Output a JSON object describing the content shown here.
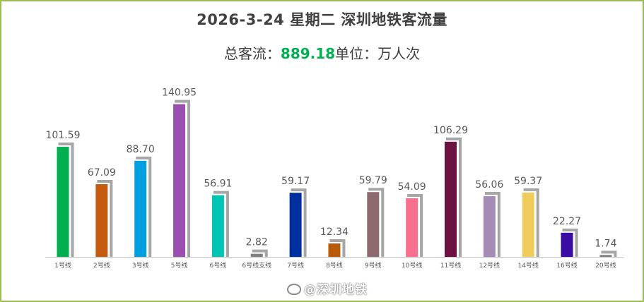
{
  "header": {
    "title": "2026-3-24 星期二  深圳地铁客流量",
    "total_prefix": "总客流：",
    "total_value": "889.18",
    "unit_text": "单位：万人次"
  },
  "watermark": {
    "text": "@深圳地铁",
    "icon": "weibo-icon"
  },
  "colors": {
    "total_value": "#00b050",
    "frame_border": "#9bbb59",
    "bar_shadow": "#a6a6a6",
    "axis": "#bfbfbf",
    "label_text": "#595959"
  },
  "chart_data": {
    "type": "bar",
    "title": "2026-3-24 星期二  深圳地铁客流量",
    "subtitle": "总客流：889.18单位：万人次",
    "categories": [
      "1号线",
      "2号线",
      "3号线",
      "5号线",
      "6号线",
      "6号线支线",
      "7号线",
      "8号线",
      "9号线",
      "10号线",
      "11号线",
      "12号线",
      "14号线",
      "16号线",
      "20号线"
    ],
    "values": [
      101.59,
      67.09,
      88.7,
      140.95,
      56.91,
      2.82,
      59.17,
      12.34,
      59.79,
      54.09,
      106.29,
      56.06,
      59.37,
      22.27,
      1.74
    ],
    "value_labels": [
      "101.59",
      "67.09",
      "88.70",
      "140.95",
      "56.91",
      "2.82",
      "59.17",
      "12.34",
      "59.79",
      "54.09",
      "106.29",
      "56.06",
      "59.37",
      "22.27",
      "1.74"
    ],
    "bar_colors": [
      "#00b050",
      "#c55a11",
      "#00a0e0",
      "#9b4fb0",
      "#00c4b4",
      "#7f7f7f",
      "#0030a0",
      "#b85c0a",
      "#8c6a6e",
      "#f7718f",
      "#6b1240",
      "#a48cb4",
      "#f0cc5c",
      "#3a0ca3",
      "#7f7f7f"
    ],
    "grid": false,
    "legend": "none"
  }
}
